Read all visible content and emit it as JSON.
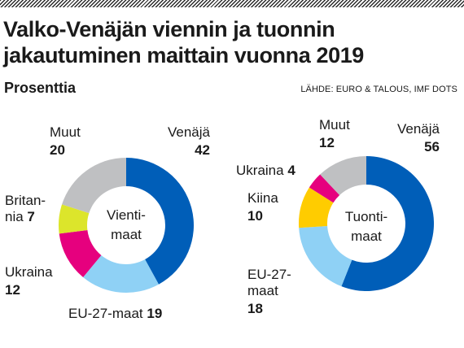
{
  "title": "Valko-Venäjän viennin ja tuonnin\njakautuminen maittain vuonna 2019",
  "subtitle": "Prosenttia",
  "source": "LÄHDE: EURO & TALOUS, IMF DOTS",
  "colors": {
    "russia": "#005eb8",
    "eu27": "#8fd1f5",
    "ukraine": "#e6007e",
    "britain": "#dce52b",
    "china": "#ffcc00",
    "other": "#bfc0c2"
  },
  "chart_data": [
    {
      "type": "pie",
      "center_label": [
        "Vienti-",
        "maat"
      ],
      "slices": [
        {
          "name": "Venäjä",
          "value": 42,
          "color": "#005eb8"
        },
        {
          "name": "EU-27-maat",
          "value": 19,
          "color": "#8fd1f5"
        },
        {
          "name": "Ukraina",
          "value": 12,
          "color": "#e6007e"
        },
        {
          "name": "Britan-nia",
          "value": 7,
          "color": "#dce52b"
        },
        {
          "name": "Muut",
          "value": 20,
          "color": "#bfc0c2"
        }
      ],
      "labels": [
        {
          "name_lines": [
            "Venäjä"
          ],
          "value": "42"
        },
        {
          "name_lines": [
            "EU-27-maat"
          ],
          "value": "19"
        },
        {
          "name_lines": [
            "Ukraina"
          ],
          "value": "12"
        },
        {
          "name_lines": [
            "Britan-",
            "nia"
          ],
          "value": "7"
        },
        {
          "name_lines": [
            "Muut"
          ],
          "value": "20"
        }
      ]
    },
    {
      "type": "pie",
      "center_label": [
        "Tuonti-",
        "maat"
      ],
      "slices": [
        {
          "name": "Venäjä",
          "value": 56,
          "color": "#005eb8"
        },
        {
          "name": "EU-27-maat",
          "value": 18,
          "color": "#8fd1f5"
        },
        {
          "name": "Kiina",
          "value": 10,
          "color": "#ffcc00"
        },
        {
          "name": "Ukraina",
          "value": 4,
          "color": "#e6007e"
        },
        {
          "name": "Muut",
          "value": 12,
          "color": "#bfc0c2"
        }
      ],
      "labels": [
        {
          "name_lines": [
            "Venäjä"
          ],
          "value": "56"
        },
        {
          "name_lines": [
            "EU-27-",
            "maat"
          ],
          "value": "18"
        },
        {
          "name_lines": [
            "Kiina"
          ],
          "value": "10"
        },
        {
          "name_lines": [
            "Ukraina"
          ],
          "value": "4"
        },
        {
          "name_lines": [
            "Muut"
          ],
          "value": "12"
        }
      ]
    }
  ]
}
